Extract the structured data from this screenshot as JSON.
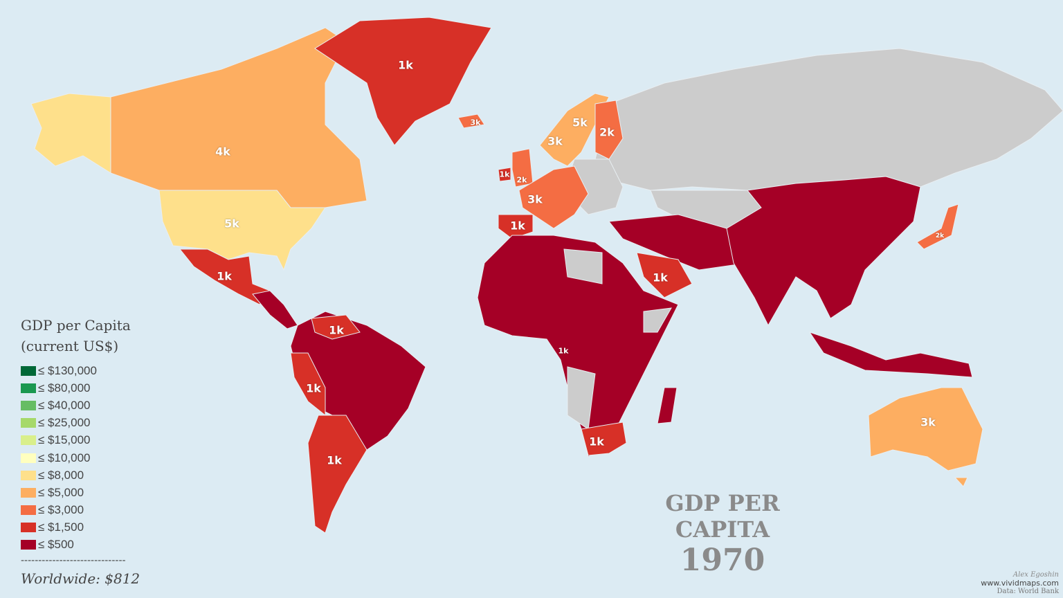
{
  "map": {
    "title": "GDP PER CAPITA",
    "year": "1970",
    "legend": {
      "title_line1": "GDP per Capita",
      "title_line2": "(current US$)",
      "items": [
        {
          "label": "≤ $130,000",
          "color": "#006837"
        },
        {
          "label": "≤ $80,000",
          "color": "#1a9850"
        },
        {
          "label": "≤ $40,000",
          "color": "#66bd63"
        },
        {
          "label": "≤ $25,000",
          "color": "#a6d96a"
        },
        {
          "label": "≤ $15,000",
          "color": "#d9ef8b"
        },
        {
          "label": "≤ $10,000",
          "color": "#ffffbf"
        },
        {
          "label": "≤ $8,000",
          "color": "#fee08b"
        },
        {
          "label": "≤ $5,000",
          "color": "#fdae61"
        },
        {
          "label": "≤ $3,000",
          "color": "#f46d43"
        },
        {
          "label": "≤ $1,500",
          "color": "#d73027"
        },
        {
          "label": "≤ $500",
          "color": "#a50026"
        }
      ],
      "separator": "------------------------------",
      "worldwide": "Worldwide: $812"
    },
    "no_data_color": "#cccccc",
    "ocean_color": "#dcebf3",
    "country_labels": {
      "greenland": "1k",
      "iceland": "3k",
      "canada": "4k",
      "usa": "5k",
      "mexico": "1k",
      "sweden": "5k",
      "norway": "3k",
      "finland": "2k",
      "uk": "2k",
      "ireland": "1k",
      "france": "3k",
      "spain": "1k",
      "saudi_arabia": "1k",
      "venezuela": "1k",
      "peru": "1k",
      "argentina": "1k",
      "gabon": "1k",
      "south_africa": "1k",
      "australia": "3k",
      "japan": "2k"
    },
    "credits": {
      "author": "Alex Egoshin",
      "website": "www.vividmaps.com",
      "source": "Data: World Bank"
    }
  }
}
